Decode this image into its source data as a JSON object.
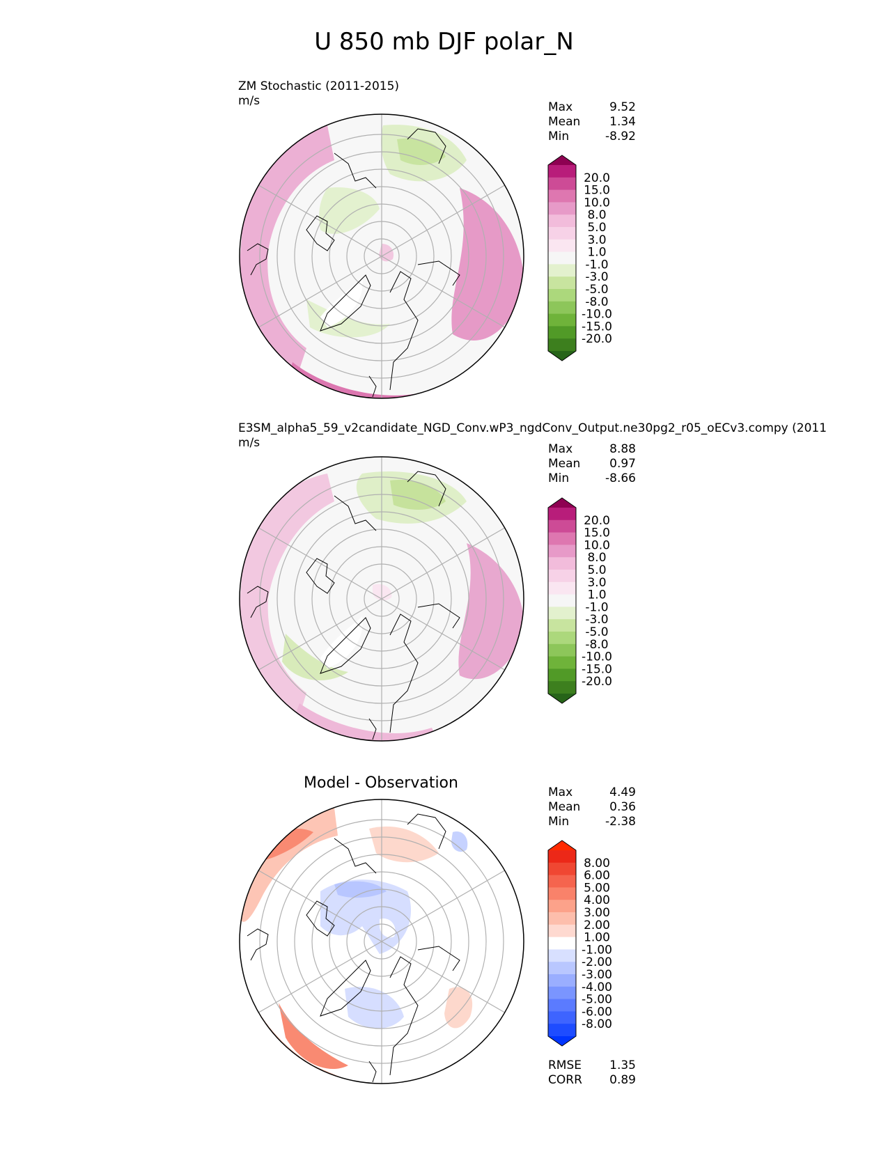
{
  "figure_title": "U 850 mb DJF polar_N",
  "colors": {
    "test_levels": [
      "#276419",
      "#3d7f1e",
      "#519a27",
      "#6fb33a",
      "#8dc65a",
      "#acd87c",
      "#c8e49f",
      "#e3f1ce",
      "#f6f6f6",
      "#fae6f1",
      "#f7d2e7",
      "#f2bcdb",
      "#e79ac8",
      "#de77b0",
      "#cd4b96",
      "#b81d7a",
      "#8e0152"
    ],
    "diff_levels": [
      "#0035ff",
      "#1e4cff",
      "#3e64ff",
      "#5b7bff",
      "#7a95ff",
      "#9aaeff",
      "#b9c7ff",
      "#d8e0ff",
      "#ffffff",
      "#fed9d0",
      "#fdbeac",
      "#fca28a",
      "#f9826a",
      "#f5644e",
      "#f04732",
      "#ec2818",
      "#ff2a00"
    ],
    "land_outline": "#000000",
    "grid": "#b0b0b0"
  },
  "panels": [
    {
      "title_line1": "ZM Stochastic (2011-2015)",
      "title_line2": "m/s",
      "stats": [
        {
          "label": "Max",
          "value": "9.52"
        },
        {
          "label": "Mean",
          "value": "1.34"
        },
        {
          "label": "Min",
          "value": "-8.92"
        }
      ],
      "colorbar_labels": [
        "20.0",
        "15.0",
        "10.0",
        "8.0",
        "5.0",
        "3.0",
        "1.0",
        "-1.0",
        "-3.0",
        "-5.0",
        "-8.0",
        "-10.0",
        "-15.0",
        "-20.0"
      ]
    },
    {
      "title_line1": "E3SM_alpha5_59_v2candidate_NGD_Conv.wP3_ngdConv_Output.ne30pg2_r05_oECv3.compy (2011",
      "title_line2": "m/s",
      "stats": [
        {
          "label": "Max",
          "value": "8.88"
        },
        {
          "label": "Mean",
          "value": "0.97"
        },
        {
          "label": "Min",
          "value": "-8.66"
        }
      ],
      "colorbar_labels": [
        "20.0",
        "15.0",
        "10.0",
        "8.0",
        "5.0",
        "3.0",
        "1.0",
        "-1.0",
        "-3.0",
        "-5.0",
        "-8.0",
        "-10.0",
        "-15.0",
        "-20.0"
      ]
    },
    {
      "title": "Model - Observation",
      "stats": [
        {
          "label": "Max",
          "value": "4.49"
        },
        {
          "label": "Mean",
          "value": "0.36"
        },
        {
          "label": "Min",
          "value": "-2.38"
        }
      ],
      "colorbar_labels": [
        "8.00",
        "6.00",
        "5.00",
        "4.00",
        "3.00",
        "2.00",
        "1.00",
        "-1.00",
        "-2.00",
        "-3.00",
        "-4.00",
        "-5.00",
        "-6.00",
        "-8.00"
      ],
      "metrics": [
        {
          "label": "RMSE",
          "value": "1.35"
        },
        {
          "label": "CORR",
          "value": "0.89"
        }
      ]
    }
  ],
  "chart_data": [
    {
      "type": "heatmap",
      "projection": "north polar stereographic",
      "variable": "U 850 mb",
      "season": "DJF",
      "title": "ZM Stochastic (2011-2015)",
      "units": "m/s",
      "statistics": {
        "max": 9.52,
        "mean": 1.34,
        "min": -8.92
      },
      "contour_levels": [
        -20.0,
        -15.0,
        -10.0,
        -8.0,
        -5.0,
        -3.0,
        -1.0,
        1.0,
        3.0,
        5.0,
        8.0,
        10.0,
        15.0,
        20.0
      ],
      "colorbar_extend": "both"
    },
    {
      "type": "heatmap",
      "projection": "north polar stereographic",
      "variable": "U 850 mb",
      "season": "DJF",
      "title": "E3SM_alpha5_59_v2candidate_NGD_Conv.wP3_ngdConv_Output.ne30pg2_r05_oECv3.compy (2011",
      "units": "m/s",
      "statistics": {
        "max": 8.88,
        "mean": 0.97,
        "min": -8.66
      },
      "contour_levels": [
        -20.0,
        -15.0,
        -10.0,
        -8.0,
        -5.0,
        -3.0,
        -1.0,
        1.0,
        3.0,
        5.0,
        8.0,
        10.0,
        15.0,
        20.0
      ],
      "colorbar_extend": "both"
    },
    {
      "type": "heatmap",
      "projection": "north polar stereographic",
      "title": "Model - Observation",
      "statistics": {
        "max": 4.49,
        "mean": 0.36,
        "min": -2.38,
        "rmse": 1.35,
        "corr": 0.89
      },
      "contour_levels": [
        -8.0,
        -6.0,
        -5.0,
        -4.0,
        -3.0,
        -2.0,
        -1.0,
        1.0,
        2.0,
        3.0,
        4.0,
        5.0,
        6.0,
        8.0
      ],
      "colorbar_extend": "both"
    }
  ]
}
